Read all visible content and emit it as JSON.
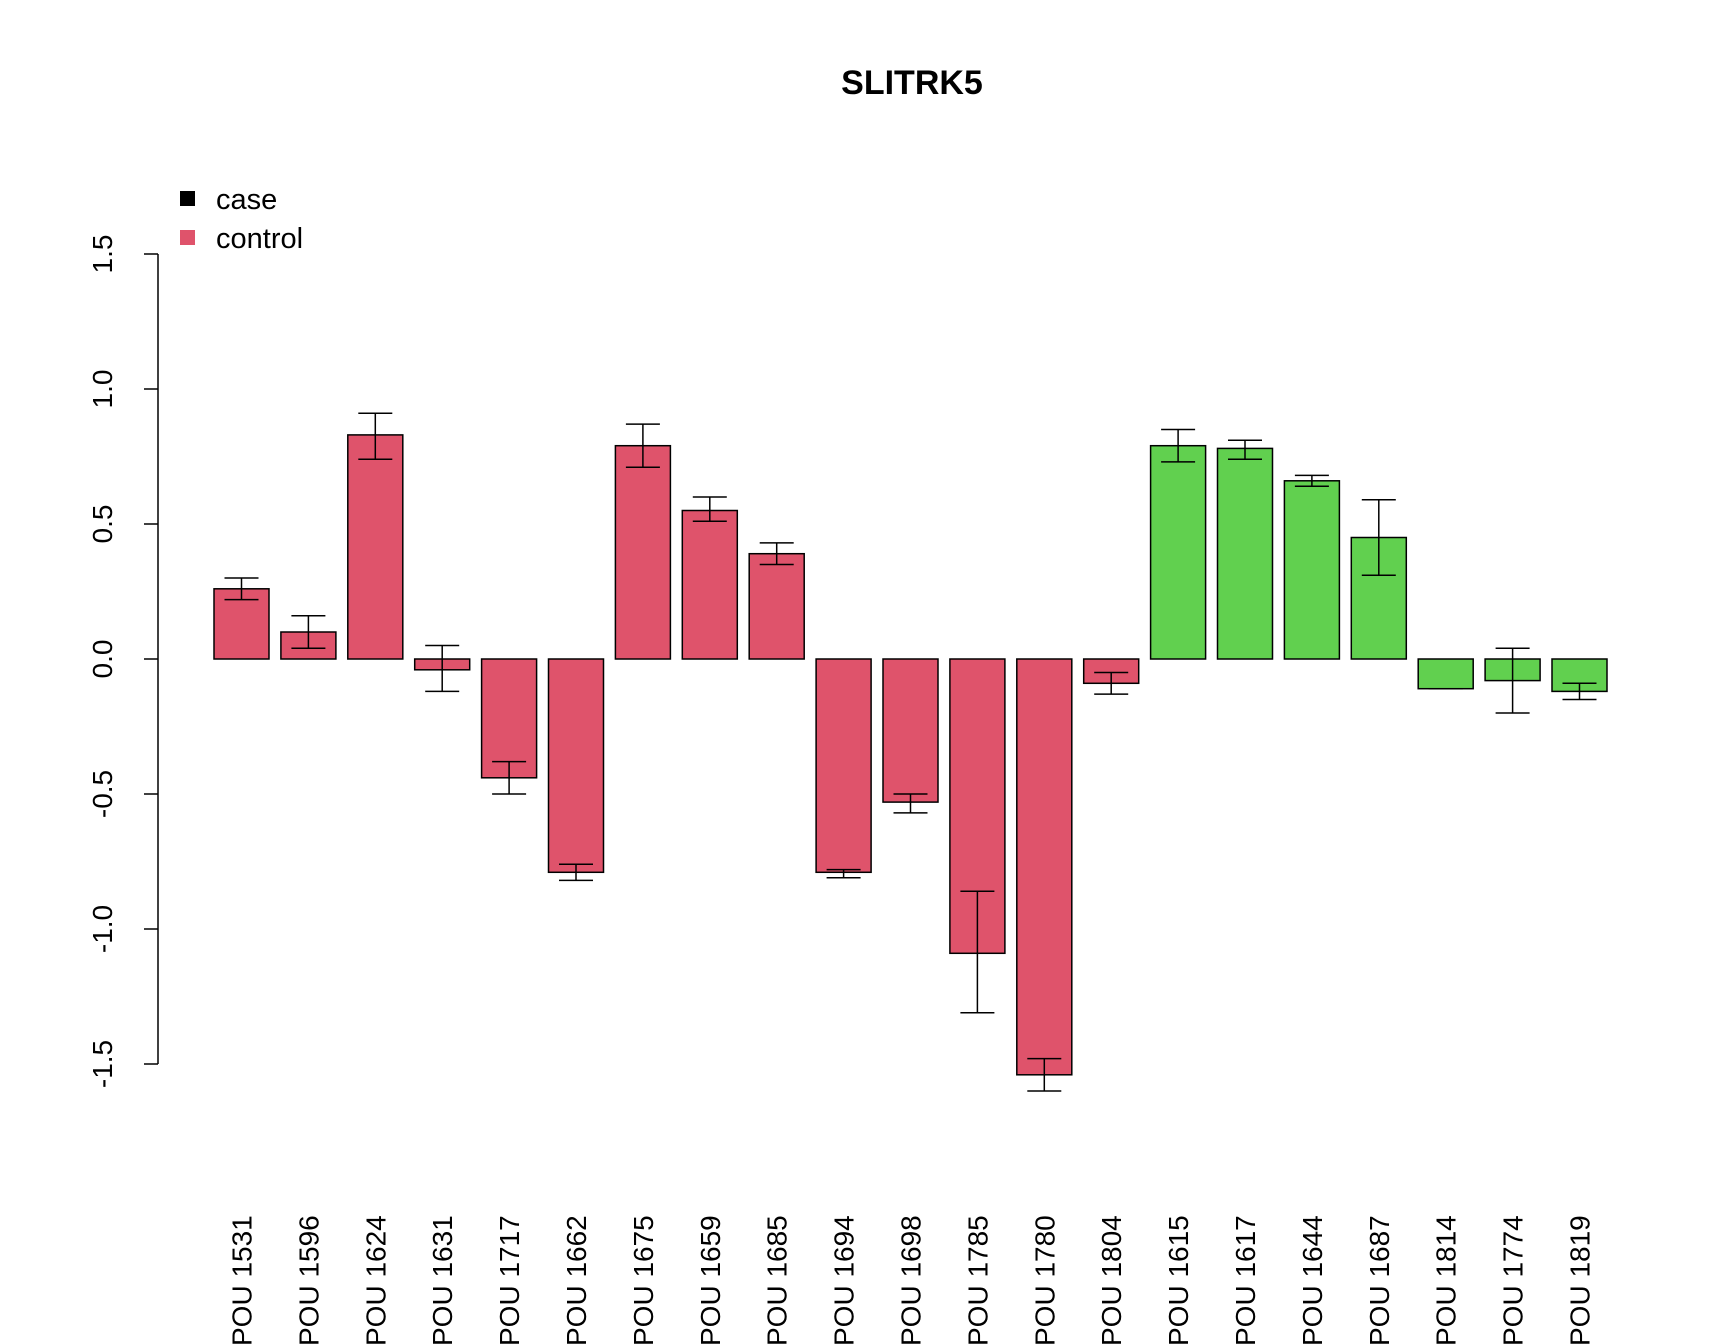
{
  "chart_data": {
    "type": "bar",
    "title": "SLITRK5",
    "xlabel": "",
    "ylabel": "",
    "ylim": [
      -1.5,
      1.5
    ],
    "yticks": [
      "-1.5",
      "-1.0",
      "-0.5",
      "0.0",
      "0.5",
      "1.0",
      "1.5"
    ],
    "grid": false,
    "legend": {
      "placement": "top-left",
      "entries": [
        {
          "label": "case",
          "color": "#000000"
        },
        {
          "label": "control",
          "color": "#DF536B"
        }
      ]
    },
    "colors": {
      "red": "#DF536B",
      "green": "#61D04F"
    },
    "categories": [
      "POU 1531",
      "POU 1596",
      "POU 1624",
      "POU 1631",
      "POU 1717",
      "POU 1662",
      "POU 1675",
      "POU 1659",
      "POU 1685",
      "POU 1694",
      "POU 1698",
      "POU 1785",
      "POU 1780",
      "POU 1804",
      "POU 1615",
      "POU 1617",
      "POU 1644",
      "POU 1687",
      "POU 1814",
      "POU 1774",
      "POU 1819"
    ],
    "values": [
      0.26,
      0.1,
      0.83,
      -0.04,
      -0.44,
      -0.79,
      0.79,
      0.55,
      0.39,
      -0.79,
      -0.53,
      -1.09,
      -1.54,
      -0.09,
      0.79,
      0.78,
      0.66,
      0.45,
      -0.11,
      -0.08,
      -0.12
    ],
    "err_low": [
      0.22,
      0.04,
      0.74,
      -0.12,
      -0.5,
      -0.82,
      0.71,
      0.51,
      0.35,
      -0.81,
      -0.57,
      -1.31,
      -1.6,
      -0.13,
      0.73,
      0.74,
      0.64,
      0.31,
      -0.11,
      -0.2,
      -0.15
    ],
    "err_high": [
      0.3,
      0.16,
      0.91,
      0.05,
      -0.38,
      -0.76,
      0.87,
      0.6,
      0.43,
      -0.78,
      -0.5,
      -0.86,
      -1.48,
      -0.05,
      0.85,
      0.81,
      0.68,
      0.59,
      -0.11,
      0.04,
      -0.09
    ],
    "bar_colors": [
      "red",
      "red",
      "red",
      "red",
      "red",
      "red",
      "red",
      "red",
      "red",
      "red",
      "red",
      "red",
      "red",
      "red",
      "green",
      "green",
      "green",
      "green",
      "green",
      "green",
      "green"
    ]
  }
}
